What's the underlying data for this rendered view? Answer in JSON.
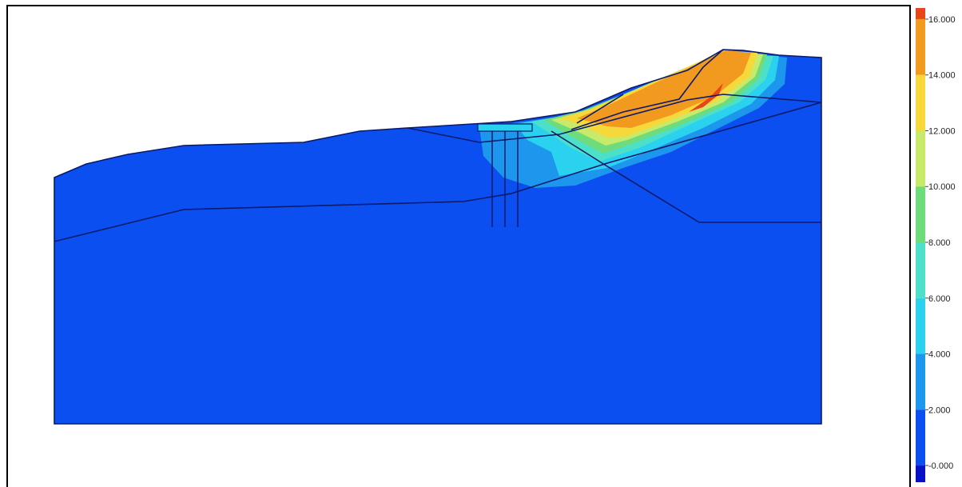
{
  "legend": {
    "ticks": [
      {
        "label": "16.000",
        "value": 16
      },
      {
        "label": "14.000",
        "value": 14
      },
      {
        "label": "12.000",
        "value": 12
      },
      {
        "label": "10.000",
        "value": 10
      },
      {
        "label": "8.000",
        "value": 8
      },
      {
        "label": "6.000",
        "value": 6
      },
      {
        "label": "4.000",
        "value": 4
      },
      {
        "label": "2.000",
        "value": 2
      },
      {
        "label": "-0.000",
        "value": 0
      }
    ],
    "bands": [
      {
        "from": 16,
        "to": 16.4,
        "color": "#e8461a"
      },
      {
        "from": 14,
        "to": 16,
        "color": "#f29a1f"
      },
      {
        "from": 12,
        "to": 14,
        "color": "#f7d83b"
      },
      {
        "from": 10,
        "to": 12,
        "color": "#c7ea6b"
      },
      {
        "from": 8,
        "to": 10,
        "color": "#6fdc7c"
      },
      {
        "from": 6,
        "to": 8,
        "color": "#4de0c8"
      },
      {
        "from": 4,
        "to": 6,
        "color": "#2ad2f0"
      },
      {
        "from": 2,
        "to": 4,
        "color": "#1d97ee"
      },
      {
        "from": 0,
        "to": 2,
        "color": "#0c4ff0"
      },
      {
        "from": -0.6,
        "to": 0,
        "color": "#0a10c8"
      }
    ]
  },
  "colors": {
    "background_field": "#0c4ff0",
    "outline": "#0b1a6a"
  }
}
